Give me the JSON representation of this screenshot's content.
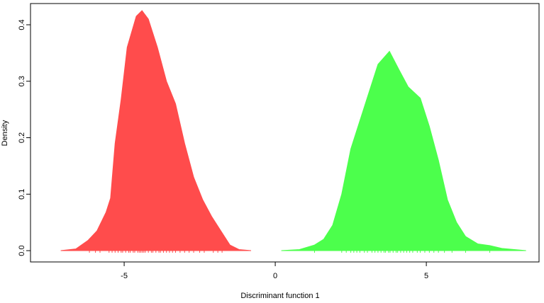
{
  "chart_data": {
    "type": "density",
    "x_label": "Discriminant function 1",
    "y_label": "Density",
    "xlim": [
      -8.1,
      8.73
    ],
    "ylim": [
      -0.02,
      0.4376
    ],
    "xticks": [
      -5,
      0,
      5
    ],
    "yticks": [
      {
        "value": 0,
        "label": "0.0"
      },
      0.1,
      0.2,
      0.3,
      0.4
    ],
    "series": [
      {
        "color": "#ff4c4c",
        "x": [
          -7.1,
          -6.6,
          -6.2,
          -5.9,
          -5.6,
          -5.45,
          -5.3,
          -5.1,
          -4.9,
          -4.6,
          -4.41,
          -4.2,
          -3.9,
          -3.6,
          -3.3,
          -3.0,
          -2.7,
          -2.4,
          -2.1,
          -1.8,
          -1.5,
          -1.2,
          -0.8
        ],
        "values": [
          0,
          0.003,
          0.018,
          0.035,
          0.068,
          0.093,
          0.19,
          0.268,
          0.36,
          0.415,
          0.425,
          0.41,
          0.36,
          0.3,
          0.26,
          0.19,
          0.13,
          0.09,
          0.06,
          0.035,
          0.01,
          0.002,
          0
        ],
        "rug": [
          -6.15,
          -5.95,
          -5.8,
          -5.5,
          -5.4,
          -5.3,
          -5.2,
          -5.1,
          -5.05,
          -4.95,
          -4.85,
          -4.8,
          -4.7,
          -4.65,
          -4.55,
          -4.5,
          -4.45,
          -4.4,
          -4.35,
          -4.3,
          -4.2,
          -4.1,
          -4.05,
          -3.95,
          -3.85,
          -3.8,
          -3.7,
          -3.6,
          -3.5,
          -3.4,
          -3.3,
          -3.15,
          -3.0,
          -2.85,
          -2.7,
          -2.5,
          -2.35,
          -2.05,
          -1.9,
          -1.76
        ]
      },
      {
        "color": "#4cff4c",
        "x": [
          0.2,
          0.8,
          1.3,
          1.6,
          1.9,
          2.2,
          2.5,
          2.8,
          3.1,
          3.4,
          3.78,
          4.1,
          4.4,
          4.8,
          5.1,
          5.4,
          5.7,
          6.0,
          6.3,
          6.7,
          7.1,
          7.5,
          8.3
        ],
        "values": [
          0,
          0.002,
          0.01,
          0.02,
          0.045,
          0.1,
          0.18,
          0.23,
          0.28,
          0.33,
          0.353,
          0.32,
          0.29,
          0.27,
          0.22,
          0.16,
          0.09,
          0.05,
          0.025,
          0.012,
          0.009,
          0.004,
          0
        ],
        "rug": [
          1.3,
          2.2,
          2.35,
          2.5,
          2.6,
          2.7,
          2.8,
          2.95,
          3.05,
          3.2,
          3.3,
          3.4,
          3.5,
          3.6,
          3.65,
          3.75,
          3.8,
          3.9,
          4.0,
          4.05,
          4.15,
          4.25,
          4.35,
          4.45,
          4.55,
          4.7,
          4.8,
          4.95,
          5.1,
          5.25,
          5.4,
          5.6,
          5.85,
          6.3,
          7.1
        ]
      }
    ]
  }
}
